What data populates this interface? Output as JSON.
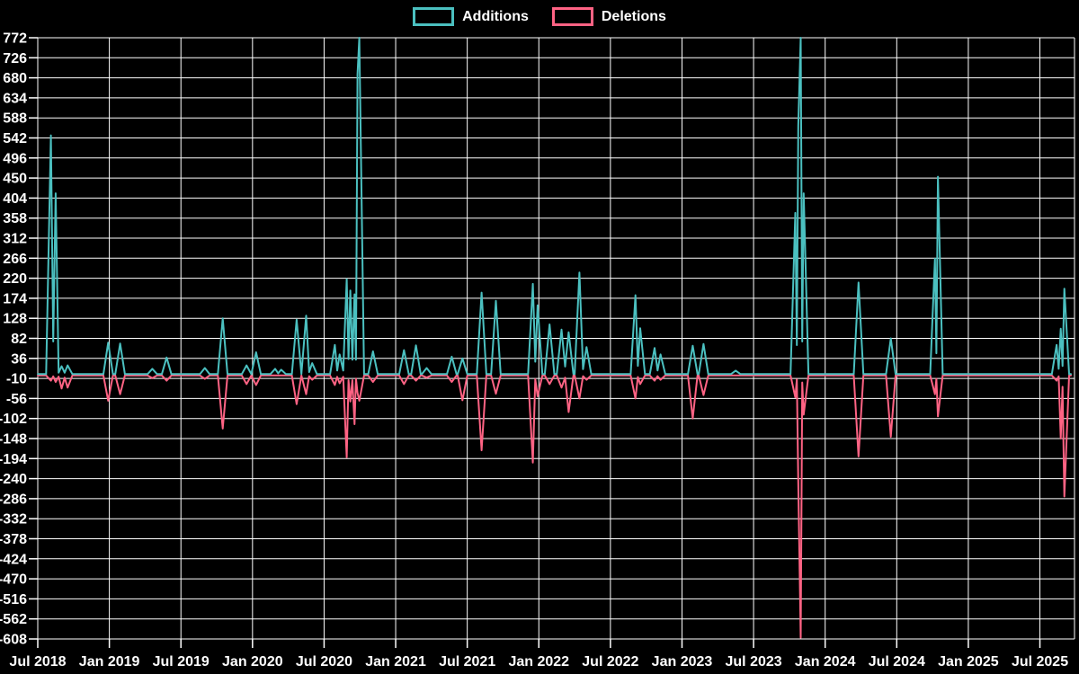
{
  "page": {
    "background": "#000000"
  },
  "legend": {
    "items": [
      {
        "id": "additions",
        "label": "Additions",
        "color": "#4bc0c0"
      },
      {
        "id": "deletions",
        "label": "Deletions",
        "color": "#ff6384"
      }
    ]
  },
  "chart_data": {
    "type": "line",
    "title": "",
    "legend_position": "top",
    "grid": true,
    "baseline": 0,
    "colors": {
      "additions": "#4bc0c0",
      "deletions": "#ff6384",
      "grid": "#ffffff",
      "text": "#ffffff",
      "background": "#000000"
    },
    "x_axis": {
      "start": "2018-07",
      "label_every_months": 6,
      "months_span": 86.9,
      "labels": [
        "Jul 2018",
        "Jan 2019",
        "Jul 2019",
        "Jan 2020",
        "Jul 2020",
        "Jan 2021",
        "Jul 2021",
        "Jan 2022",
        "Jul 2022",
        "Jan 2023",
        "Jul 2023",
        "Jan 2024",
        "Jul 2024",
        "Jan 2025",
        "Jul 2025"
      ]
    },
    "y_axis": {
      "min": -608,
      "max": 772,
      "step": 46,
      "ticks": [
        772,
        726,
        680,
        634,
        588,
        542,
        496,
        450,
        404,
        358,
        312,
        266,
        220,
        174,
        128,
        82,
        36,
        -10,
        -56,
        -102,
        -148,
        -194,
        -240,
        -286,
        -332,
        -378,
        -424,
        -470,
        -516,
        -562,
        -608
      ]
    },
    "series_format": "events: m = months after 2018-07 (approx date given); add = Additions value; del = Deletions value; line is 0 between events",
    "events": [
      {
        "m": 1.1,
        "date": "2018-08",
        "add": 548,
        "del": -12
      },
      {
        "m": 1.5,
        "date": "2018-08",
        "add": 415,
        "del": -15
      },
      {
        "m": 2.0,
        "date": "2018-09",
        "add": 18,
        "del": -30
      },
      {
        "m": 2.5,
        "date": "2018-09",
        "add": 20,
        "del": -28
      },
      {
        "m": 5.9,
        "date": "2018-12",
        "add": 72,
        "del": -58
      },
      {
        "m": 6.9,
        "date": "2019-01",
        "add": 70,
        "del": -43
      },
      {
        "m": 9.6,
        "date": "2019-04",
        "add": 12,
        "del": -6
      },
      {
        "m": 10.8,
        "date": "2019-05",
        "add": 38,
        "del": -12
      },
      {
        "m": 14.0,
        "date": "2019-09",
        "add": 14,
        "del": -8
      },
      {
        "m": 15.5,
        "date": "2019-10",
        "add": 128,
        "del": -122
      },
      {
        "m": 17.5,
        "date": "2019-12",
        "add": 20,
        "del": -20
      },
      {
        "m": 18.3,
        "date": "2020-01",
        "add": 50,
        "del": -22
      },
      {
        "m": 19.9,
        "date": "2020-02",
        "add": 12,
        "del": 0
      },
      {
        "m": 20.4,
        "date": "2020-03",
        "add": 10,
        "del": 0
      },
      {
        "m": 21.7,
        "date": "2020-04",
        "add": 125,
        "del": -66
      },
      {
        "m": 22.5,
        "date": "2020-05",
        "add": 134,
        "del": -43
      },
      {
        "m": 23.0,
        "date": "2020-06",
        "add": 25,
        "del": -10
      },
      {
        "m": 24.9,
        "date": "2020-07",
        "add": 67,
        "del": -22
      },
      {
        "m": 25.3,
        "date": "2020-08",
        "add": 45,
        "del": -18
      },
      {
        "m": 25.9,
        "date": "2020-08",
        "add": 218,
        "del": -188
      },
      {
        "m": 26.2,
        "date": "2020-09",
        "add": 192,
        "del": -60
      },
      {
        "m": 26.55,
        "date": "2020-09",
        "add": 183,
        "del": -112
      },
      {
        "m": 26.8,
        "date": "2020-09",
        "add": 688,
        "del": -40
      },
      {
        "m": 26.95,
        "date": "2020-10",
        "add": 772,
        "del": -58
      },
      {
        "m": 28.1,
        "date": "2020-11",
        "add": 52,
        "del": -15
      },
      {
        "m": 30.7,
        "date": "2021-01",
        "add": 55,
        "del": -20
      },
      {
        "m": 31.7,
        "date": "2021-02",
        "add": 66,
        "del": -12
      },
      {
        "m": 32.6,
        "date": "2021-03",
        "add": 14,
        "del": -5
      },
      {
        "m": 34.7,
        "date": "2021-05",
        "add": 40,
        "del": -15
      },
      {
        "m": 35.6,
        "date": "2021-06",
        "add": 36,
        "del": -57
      },
      {
        "m": 37.2,
        "date": "2021-08",
        "add": 187,
        "del": -172
      },
      {
        "m": 38.4,
        "date": "2021-09",
        "add": 168,
        "del": -42
      },
      {
        "m": 41.5,
        "date": "2021-12",
        "add": 207,
        "del": -200
      },
      {
        "m": 41.9,
        "date": "2021-12",
        "add": 158,
        "del": -48
      },
      {
        "m": 42.9,
        "date": "2022-01",
        "add": 114,
        "del": -20
      },
      {
        "m": 43.9,
        "date": "2022-02",
        "add": 102,
        "del": -28
      },
      {
        "m": 44.5,
        "date": "2022-03",
        "add": 96,
        "del": -84
      },
      {
        "m": 45.4,
        "date": "2022-04",
        "add": 233,
        "del": -53
      },
      {
        "m": 46.0,
        "date": "2022-05",
        "add": 62,
        "del": -10
      },
      {
        "m": 50.1,
        "date": "2022-09",
        "add": 181,
        "del": -53
      },
      {
        "m": 50.5,
        "date": "2022-09",
        "add": 105,
        "del": -20
      },
      {
        "m": 51.7,
        "date": "2022-10",
        "add": 60,
        "del": -12
      },
      {
        "m": 52.2,
        "date": "2022-11",
        "add": 45,
        "del": -10
      },
      {
        "m": 54.9,
        "date": "2023-01",
        "add": 65,
        "del": -99
      },
      {
        "m": 55.8,
        "date": "2023-02",
        "add": 69,
        "del": -45
      },
      {
        "m": 58.5,
        "date": "2023-05",
        "add": 8,
        "del": 0
      },
      {
        "m": 63.5,
        "date": "2023-10",
        "add": 370,
        "del": -50
      },
      {
        "m": 63.75,
        "date": "2023-10",
        "add": 570,
        "del": -246
      },
      {
        "m": 63.95,
        "date": "2023-11",
        "add": 772,
        "del": -602
      },
      {
        "m": 64.2,
        "date": "2023-11",
        "add": 415,
        "del": -90
      },
      {
        "m": 68.8,
        "date": "2024-03",
        "add": 210,
        "del": -186
      },
      {
        "m": 71.5,
        "date": "2024-06",
        "add": 82,
        "del": -141
      },
      {
        "m": 75.2,
        "date": "2024-10",
        "add": 265,
        "del": -43
      },
      {
        "m": 75.45,
        "date": "2024-10",
        "add": 453,
        "del": -94
      },
      {
        "m": 85.4,
        "date": "2025-08",
        "add": 67,
        "del": -12
      },
      {
        "m": 85.75,
        "date": "2025-08",
        "add": 104,
        "del": -145
      },
      {
        "m": 86.05,
        "date": "2025-09",
        "add": 196,
        "del": -278
      }
    ]
  }
}
